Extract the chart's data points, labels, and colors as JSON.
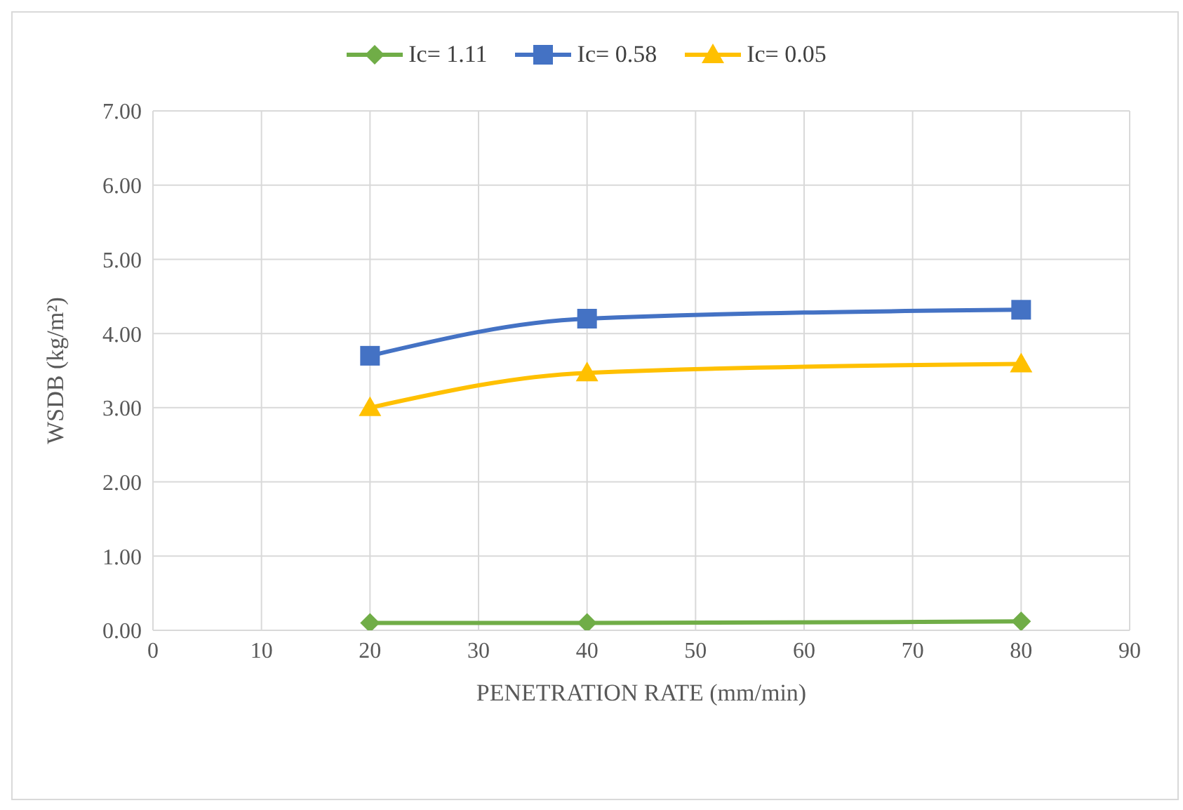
{
  "chart_data": {
    "type": "line",
    "xlabel": "PENETRATION RATE (mm/min)",
    "ylabel": "WSDB (kg/m²)",
    "xlim": [
      0,
      90
    ],
    "xticks": [
      0,
      10,
      20,
      30,
      40,
      50,
      60,
      70,
      80,
      90
    ],
    "ylim": [
      0,
      7
    ],
    "yticks": [
      {
        "value": 0,
        "label": "0.00"
      },
      {
        "value": 1,
        "label": "1.00"
      },
      {
        "value": 2,
        "label": "2.00"
      },
      {
        "value": 3,
        "label": "3.00"
      },
      {
        "value": 4,
        "label": "4.00"
      },
      {
        "value": 5,
        "label": "5.00"
      },
      {
        "value": 6,
        "label": "6.00"
      },
      {
        "value": 7,
        "label": "7.00"
      }
    ],
    "grid": true,
    "legend": "top",
    "line_style": "solid",
    "series": [
      {
        "name": "Ic= 1.11",
        "color": "#70ad47",
        "marker": "diamond",
        "x": [
          20,
          40,
          80
        ],
        "values": [
          0.1,
          0.1,
          0.12
        ]
      },
      {
        "name": "Ic= 0.58",
        "color": "#4472c4",
        "marker": "square",
        "x": [
          20,
          40,
          80
        ],
        "values": [
          3.7,
          4.2,
          4.32
        ]
      },
      {
        "name": "Ic= 0.05",
        "color": "#ffc000",
        "marker": "triangle",
        "x": [
          20,
          40,
          80
        ],
        "values": [
          3.0,
          3.47,
          3.59
        ]
      }
    ]
  }
}
